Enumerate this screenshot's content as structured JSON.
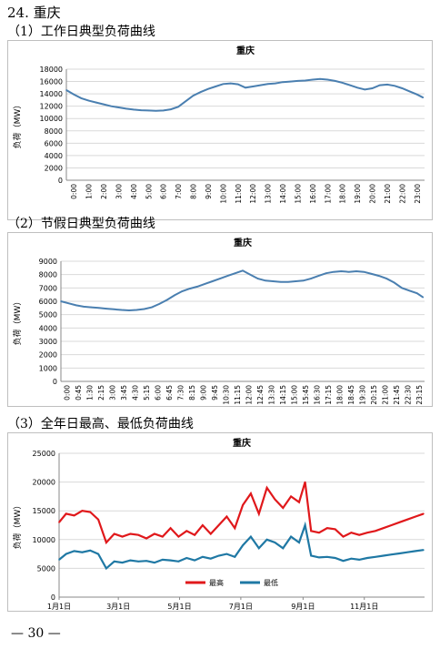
{
  "page": {
    "section_title": "24.  重庆",
    "footer": "— 30 —"
  },
  "headings": [
    "（1）工作日典型负荷曲线",
    "（2）节假日典型负荷曲线",
    "（3）全年日最高、最低负荷曲线"
  ],
  "colors": {
    "line_blue": "#4a7fb0",
    "max_red": "#e0181b",
    "min_blue": "#1f78a4",
    "grid": "#d9d9d9"
  },
  "chart_data": [
    {
      "type": "line",
      "title": "重庆",
      "ylabel": "负荷（MW）",
      "ylim": [
        0,
        18000
      ],
      "yticks": [
        "0",
        "2000",
        "4000",
        "6000",
        "8000",
        "10000",
        "12000",
        "14000",
        "16000",
        "18000"
      ],
      "xticks": [
        "0:00",
        "1:00",
        "2:00",
        "3:00",
        "4:00",
        "5:00",
        "6:00",
        "7:00",
        "8:00",
        "9:00",
        "10:00",
        "11:00",
        "12:00",
        "13:00",
        "14:00",
        "15:00",
        "16:00",
        "17:00",
        "18:00",
        "19:00",
        "20:00",
        "21:00",
        "22:00",
        "23:00"
      ],
      "x_hours": [
        0,
        0.5,
        1,
        1.5,
        2,
        2.5,
        3,
        3.5,
        4,
        4.5,
        5,
        5.5,
        6,
        6.5,
        7,
        7.5,
        8,
        8.5,
        9,
        9.5,
        10,
        10.5,
        11,
        11.5,
        12,
        12.5,
        13,
        13.5,
        14,
        14.5,
        15,
        15.5,
        16,
        16.5,
        17,
        17.5,
        18,
        18.5,
        19,
        19.5,
        20,
        20.5,
        21,
        21.5,
        22,
        22.5,
        23,
        23.5,
        23.9
      ],
      "values": [
        14600,
        13900,
        13300,
        12900,
        12600,
        12300,
        12000,
        11800,
        11600,
        11450,
        11350,
        11300,
        11250,
        11300,
        11500,
        11900,
        12800,
        13700,
        14300,
        14800,
        15200,
        15600,
        15700,
        15550,
        15000,
        15200,
        15400,
        15600,
        15700,
        15900,
        16000,
        16100,
        16150,
        16300,
        16400,
        16300,
        16100,
        15800,
        15400,
        15000,
        14700,
        14900,
        15400,
        15500,
        15300,
        14900,
        14400,
        13900,
        13400
      ],
      "grid": true
    },
    {
      "type": "line",
      "title": "重庆",
      "ylabel": "负荷（MW）",
      "ylim": [
        0,
        9000
      ],
      "yticks": [
        "0",
        "1000",
        "2000",
        "3000",
        "4000",
        "5000",
        "6000",
        "7000",
        "8000",
        "9000"
      ],
      "xticks": [
        "0:00",
        "0:45",
        "1:30",
        "2:15",
        "3:00",
        "3:45",
        "4:30",
        "5:15",
        "6:00",
        "6:45",
        "7:30",
        "8:15",
        "9:00",
        "9:45",
        "10:30",
        "11:15",
        "12:00",
        "12:45",
        "13:30",
        "14:15",
        "15:00",
        "15:45",
        "16:30",
        "17:15",
        "18:00",
        "18:45",
        "19:30",
        "20:15",
        "21:00",
        "21:45",
        "22:30",
        "23:15"
      ],
      "x_hours": [
        0,
        0.5,
        1,
        1.5,
        2,
        2.5,
        3,
        3.5,
        4,
        4.5,
        5,
        5.5,
        6,
        6.5,
        7,
        7.5,
        8,
        8.5,
        9,
        9.5,
        10,
        10.5,
        11,
        11.5,
        12,
        12.5,
        13,
        13.5,
        14,
        14.5,
        15,
        15.5,
        16,
        16.5,
        17,
        17.5,
        18,
        18.5,
        19,
        19.5,
        20,
        20.5,
        21,
        21.5,
        22,
        22.5,
        23,
        23.5,
        23.9
      ],
      "values": [
        6000,
        5850,
        5700,
        5600,
        5550,
        5500,
        5450,
        5400,
        5350,
        5320,
        5350,
        5420,
        5550,
        5800,
        6100,
        6450,
        6750,
        6950,
        7100,
        7300,
        7500,
        7700,
        7900,
        8100,
        8300,
        8000,
        7700,
        7550,
        7500,
        7450,
        7450,
        7500,
        7550,
        7700,
        7900,
        8100,
        8200,
        8250,
        8200,
        8250,
        8200,
        8050,
        7900,
        7700,
        7400,
        7000,
        6800,
        6600,
        6300
      ],
      "grid": true
    },
    {
      "type": "line",
      "title": "重庆",
      "ylabel": "负荷（MW）",
      "ylim": [
        0,
        25000
      ],
      "yticks": [
        "0",
        "5000",
        "10000",
        "15000",
        "20000",
        "25000"
      ],
      "xticks": [
        "1月1日",
        "3月1日",
        "5月1日",
        "7月1日",
        "9月1日",
        "11月1日"
      ],
      "xtick_days": [
        1,
        60,
        121,
        182,
        244,
        305
      ],
      "legend": [
        "最高",
        "最低"
      ],
      "legend_position": "bottom-center",
      "series": [
        {
          "name": "最高",
          "day": [
            1,
            8,
            16,
            24,
            32,
            40,
            48,
            56,
            64,
            72,
            80,
            88,
            96,
            104,
            112,
            120,
            128,
            136,
            144,
            152,
            160,
            168,
            176,
            184,
            192,
            200,
            208,
            216,
            224,
            232,
            240,
            246,
            252,
            260,
            268,
            276,
            284,
            292,
            300,
            308,
            316,
            324,
            332,
            340,
            348,
            356,
            364
          ],
          "values": [
            13000,
            14500,
            14200,
            15000,
            14800,
            13500,
            9500,
            11000,
            10500,
            11000,
            10800,
            10200,
            11000,
            10500,
            12000,
            10500,
            11500,
            10800,
            12500,
            11000,
            12500,
            14000,
            12000,
            16000,
            18000,
            14500,
            19000,
            17000,
            15500,
            17500,
            16500,
            20000,
            11500,
            11200,
            12000,
            11800,
            10500,
            11200,
            10800,
            11200,
            11500,
            12000,
            12500,
            13000,
            13500,
            14000,
            14500
          ]
        },
        {
          "name": "最低",
          "day": [
            1,
            8,
            16,
            24,
            32,
            40,
            48,
            56,
            64,
            72,
            80,
            88,
            96,
            104,
            112,
            120,
            128,
            136,
            144,
            152,
            160,
            168,
            176,
            184,
            192,
            200,
            208,
            216,
            224,
            232,
            240,
            246,
            252,
            260,
            268,
            276,
            284,
            292,
            300,
            308,
            316,
            324,
            332,
            340,
            348,
            356,
            364
          ],
          "values": [
            6500,
            7500,
            8000,
            7800,
            8100,
            7500,
            5000,
            6200,
            6000,
            6400,
            6200,
            6300,
            6000,
            6500,
            6400,
            6200,
            6800,
            6400,
            7000,
            6700,
            7200,
            7500,
            7000,
            9000,
            10500,
            8500,
            10000,
            9500,
            8500,
            10500,
            9500,
            12500,
            7200,
            6900,
            7000,
            6800,
            6300,
            6700,
            6500,
            6800,
            7000,
            7200,
            7400,
            7600,
            7800,
            8000,
            8200
          ]
        }
      ],
      "grid": true
    }
  ]
}
